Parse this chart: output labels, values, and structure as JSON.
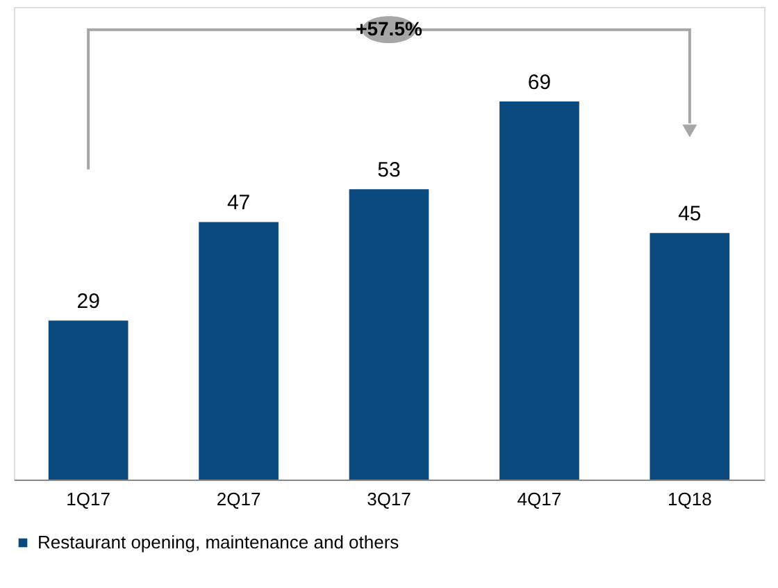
{
  "chart_data": {
    "type": "bar",
    "categories": [
      "1Q17",
      "2Q17",
      "3Q17",
      "4Q17",
      "1Q18"
    ],
    "series": [
      {
        "name": "Restaurant opening, maintenance and others",
        "color": "#0a4a7f",
        "values": [
          29,
          47,
          53,
          69,
          45
        ]
      }
    ],
    "data_labels": true,
    "legend": "bottom",
    "annotations": [
      "+57.5%"
    ]
  }
}
